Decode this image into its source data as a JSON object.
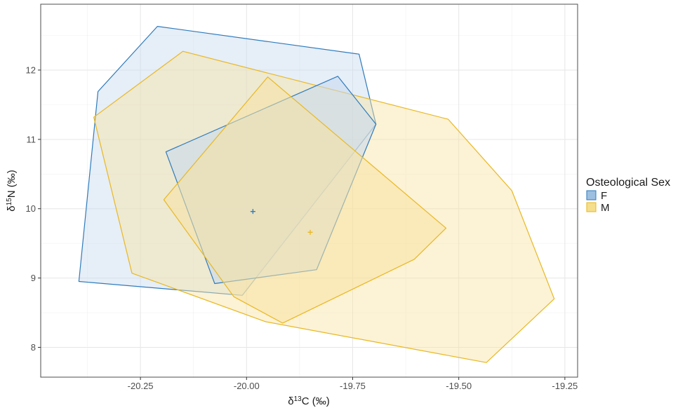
{
  "chart_data": {
    "type": "scatter",
    "subtype": "convex-hull-polygons",
    "xlabel": "δ13C (‰)",
    "ylabel": "δ15N (‰)",
    "xlim": [
      -20.485,
      -19.22
    ],
    "ylim": [
      7.57,
      12.95
    ],
    "x_ticks": [
      -20.25,
      -20.0,
      -19.75,
      -19.5,
      -19.25
    ],
    "x_tick_labels": [
      "-20.25",
      "-20.00",
      "-19.75",
      "-19.50",
      "-19.25"
    ],
    "y_ticks": [
      8,
      9,
      10,
      11,
      12
    ],
    "y_tick_labels": [
      "8",
      "9",
      "10",
      "11",
      "12"
    ],
    "grid": true,
    "legend": {
      "title": "Osteological Sex",
      "position": "right",
      "entries": [
        "F",
        "M"
      ]
    },
    "series": [
      {
        "name": "F",
        "color": "#2f7bbb",
        "fill": "#c7d9ef",
        "polygons": [
          [
            [
              -20.21,
              12.63
            ],
            [
              -19.735,
              12.23
            ],
            [
              -19.695,
              11.22
            ],
            [
              -20.01,
              8.75
            ],
            [
              -20.395,
              8.95
            ],
            [
              -20.35,
              11.69
            ]
          ],
          [
            [
              -20.19,
              10.82
            ],
            [
              -19.785,
              11.91
            ],
            [
              -19.695,
              11.22
            ],
            [
              -19.835,
              9.12
            ],
            [
              -20.075,
              8.92
            ]
          ]
        ],
        "centroid": [
          -19.985,
          9.96
        ]
      },
      {
        "name": "M",
        "color": "#e8b820",
        "fill": "#f8e2a2",
        "polygons": [
          [
            [
              -20.15,
              12.27
            ],
            [
              -19.525,
              11.29
            ],
            [
              -19.375,
              10.26
            ],
            [
              -19.275,
              8.7
            ],
            [
              -19.435,
              7.78
            ],
            [
              -19.955,
              8.37
            ],
            [
              -20.27,
              9.07
            ],
            [
              -20.36,
              11.32
            ]
          ],
          [
            [
              -19.95,
              11.9
            ],
            [
              -19.53,
              9.72
            ],
            [
              -19.605,
              9.27
            ],
            [
              -19.915,
              8.35
            ],
            [
              -20.03,
              8.73
            ],
            [
              -20.195,
              10.13
            ]
          ]
        ],
        "centroid": [
          -19.85,
          9.66
        ]
      }
    ]
  }
}
